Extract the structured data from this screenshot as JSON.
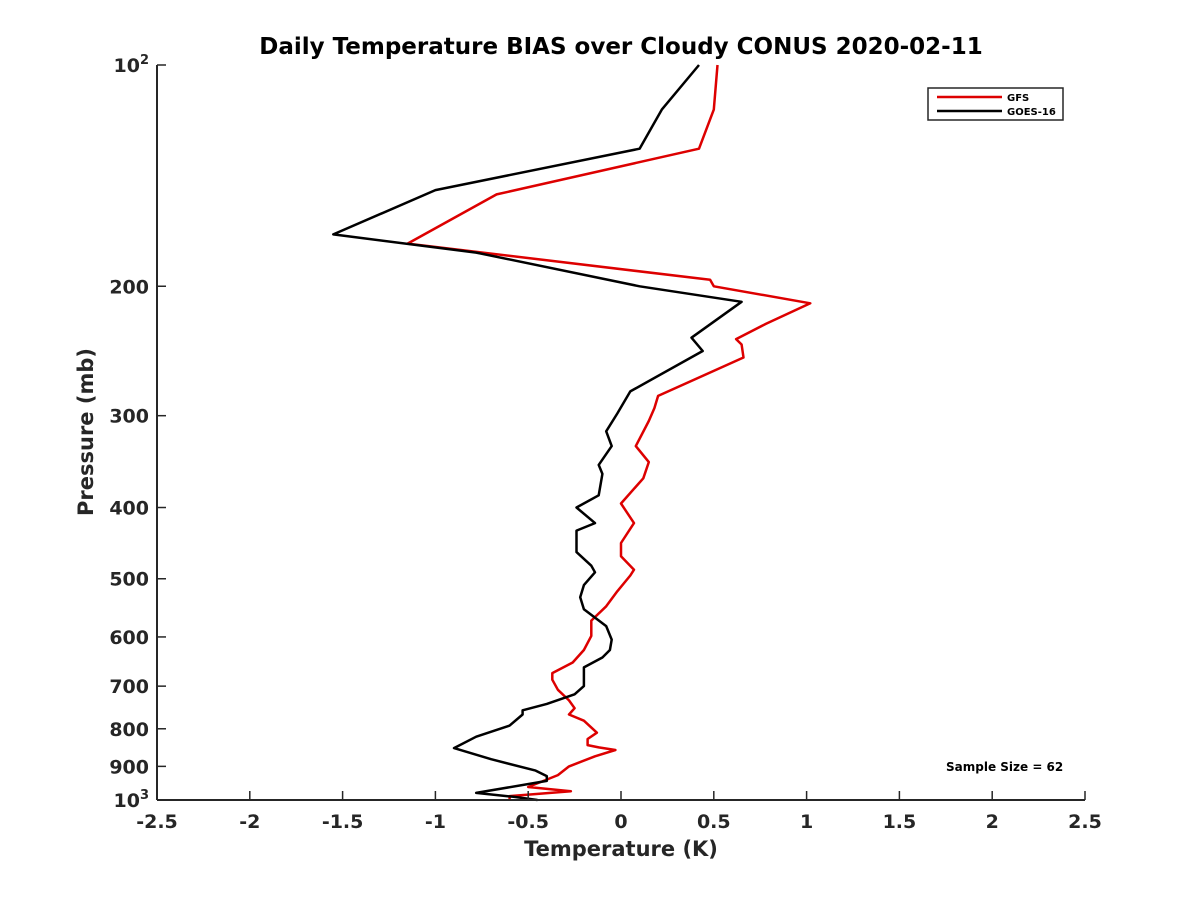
{
  "chart_data": {
    "type": "line",
    "title": "Daily Temperature BIAS over Cloudy CONUS 2020-02-11",
    "xlabel": "Temperature (K)",
    "ylabel": "Pressure (mb)",
    "xlim": [
      -2.5,
      2.5
    ],
    "ylim": [
      100,
      1000
    ],
    "yscale": "log",
    "y_reversed": true,
    "grid": false,
    "legend_position": "top-right",
    "x_ticks": [
      -2.5,
      -2,
      -1.5,
      -1,
      -0.5,
      0,
      0.5,
      1,
      1.5,
      2,
      2.5
    ],
    "x_tick_labels": [
      "-2.5",
      "-2",
      "-1.5",
      "-1",
      "-0.5",
      "0",
      "0.5",
      "1",
      "1.5",
      "2",
      "2.5"
    ],
    "y_ticks": [
      {
        "value": 100,
        "base": "10",
        "exp": "2"
      },
      {
        "value": 200,
        "label": "200"
      },
      {
        "value": 300,
        "label": "300"
      },
      {
        "value": 400,
        "label": "400"
      },
      {
        "value": 500,
        "label": "500"
      },
      {
        "value": 600,
        "label": "600"
      },
      {
        "value": 700,
        "label": "700"
      },
      {
        "value": 800,
        "label": "800"
      },
      {
        "value": 900,
        "label": "900"
      },
      {
        "value": 1000,
        "base": "10",
        "exp": "3"
      }
    ],
    "annotation": "Sample Size = 62",
    "series": [
      {
        "name": "GFS",
        "color": "#dd0000",
        "points": [
          [
            0.52,
            100
          ],
          [
            0.5,
            115
          ],
          [
            0.42,
            130
          ],
          [
            -0.67,
            150
          ],
          [
            -1.15,
            175
          ],
          [
            0.48,
            196
          ],
          [
            0.5,
            200
          ],
          [
            1.02,
            211
          ],
          [
            0.78,
            225
          ],
          [
            0.62,
            236
          ],
          [
            0.65,
            240
          ],
          [
            0.66,
            250
          ],
          [
            0.2,
            282
          ],
          [
            0.18,
            293
          ],
          [
            0.15,
            305
          ],
          [
            0.08,
            330
          ],
          [
            0.15,
            347
          ],
          [
            0.12,
            365
          ],
          [
            0.0,
            395
          ],
          [
            0.07,
            420
          ],
          [
            0.0,
            447
          ],
          [
            0.0,
            466
          ],
          [
            0.07,
            486
          ],
          [
            0.05,
            495
          ],
          [
            -0.02,
            520
          ],
          [
            -0.08,
            545
          ],
          [
            -0.16,
            570
          ],
          [
            -0.16,
            598
          ],
          [
            -0.2,
            625
          ],
          [
            -0.26,
            650
          ],
          [
            -0.37,
            672
          ],
          [
            -0.37,
            686
          ],
          [
            -0.34,
            708
          ],
          [
            -0.28,
            732
          ],
          [
            -0.25,
            750
          ],
          [
            -0.28,
            765
          ],
          [
            -0.2,
            780
          ],
          [
            -0.13,
            810
          ],
          [
            -0.18,
            826
          ],
          [
            -0.18,
            842
          ],
          [
            -0.12,
            848
          ],
          [
            -0.03,
            855
          ],
          [
            -0.14,
            872
          ],
          [
            -0.28,
            900
          ],
          [
            -0.34,
            925
          ],
          [
            -0.5,
            960
          ],
          [
            -0.27,
            973
          ],
          [
            -0.6,
            988
          ],
          [
            -0.6,
            1000
          ]
        ]
      },
      {
        "name": "GOES-16",
        "color": "#000000",
        "points": [
          [
            0.42,
            100
          ],
          [
            0.22,
            115
          ],
          [
            0.1,
            130
          ],
          [
            -1.0,
            148
          ],
          [
            -1.55,
            170
          ],
          [
            -0.78,
            180
          ],
          [
            0.1,
            200
          ],
          [
            0.65,
            210
          ],
          [
            0.38,
            235
          ],
          [
            0.44,
            245
          ],
          [
            0.05,
            278
          ],
          [
            -0.02,
            298
          ],
          [
            -0.08,
            315
          ],
          [
            -0.05,
            330
          ],
          [
            -0.12,
            350
          ],
          [
            -0.1,
            360
          ],
          [
            -0.12,
            385
          ],
          [
            -0.24,
            400
          ],
          [
            -0.14,
            420
          ],
          [
            -0.24,
            430
          ],
          [
            -0.24,
            460
          ],
          [
            -0.16,
            480
          ],
          [
            -0.14,
            490
          ],
          [
            -0.2,
            510
          ],
          [
            -0.22,
            530
          ],
          [
            -0.2,
            550
          ],
          [
            -0.08,
            580
          ],
          [
            -0.05,
            605
          ],
          [
            -0.06,
            625
          ],
          [
            -0.1,
            640
          ],
          [
            -0.2,
            660
          ],
          [
            -0.2,
            700
          ],
          [
            -0.25,
            718
          ],
          [
            -0.4,
            740
          ],
          [
            -0.53,
            755
          ],
          [
            -0.53,
            765
          ],
          [
            -0.6,
            792
          ],
          [
            -0.78,
            820
          ],
          [
            -0.9,
            850
          ],
          [
            -0.7,
            880
          ],
          [
            -0.46,
            912
          ],
          [
            -0.4,
            928
          ],
          [
            -0.4,
            942
          ],
          [
            -0.78,
            978
          ],
          [
            -0.58,
            990
          ],
          [
            -0.45,
            1000
          ]
        ]
      }
    ]
  }
}
